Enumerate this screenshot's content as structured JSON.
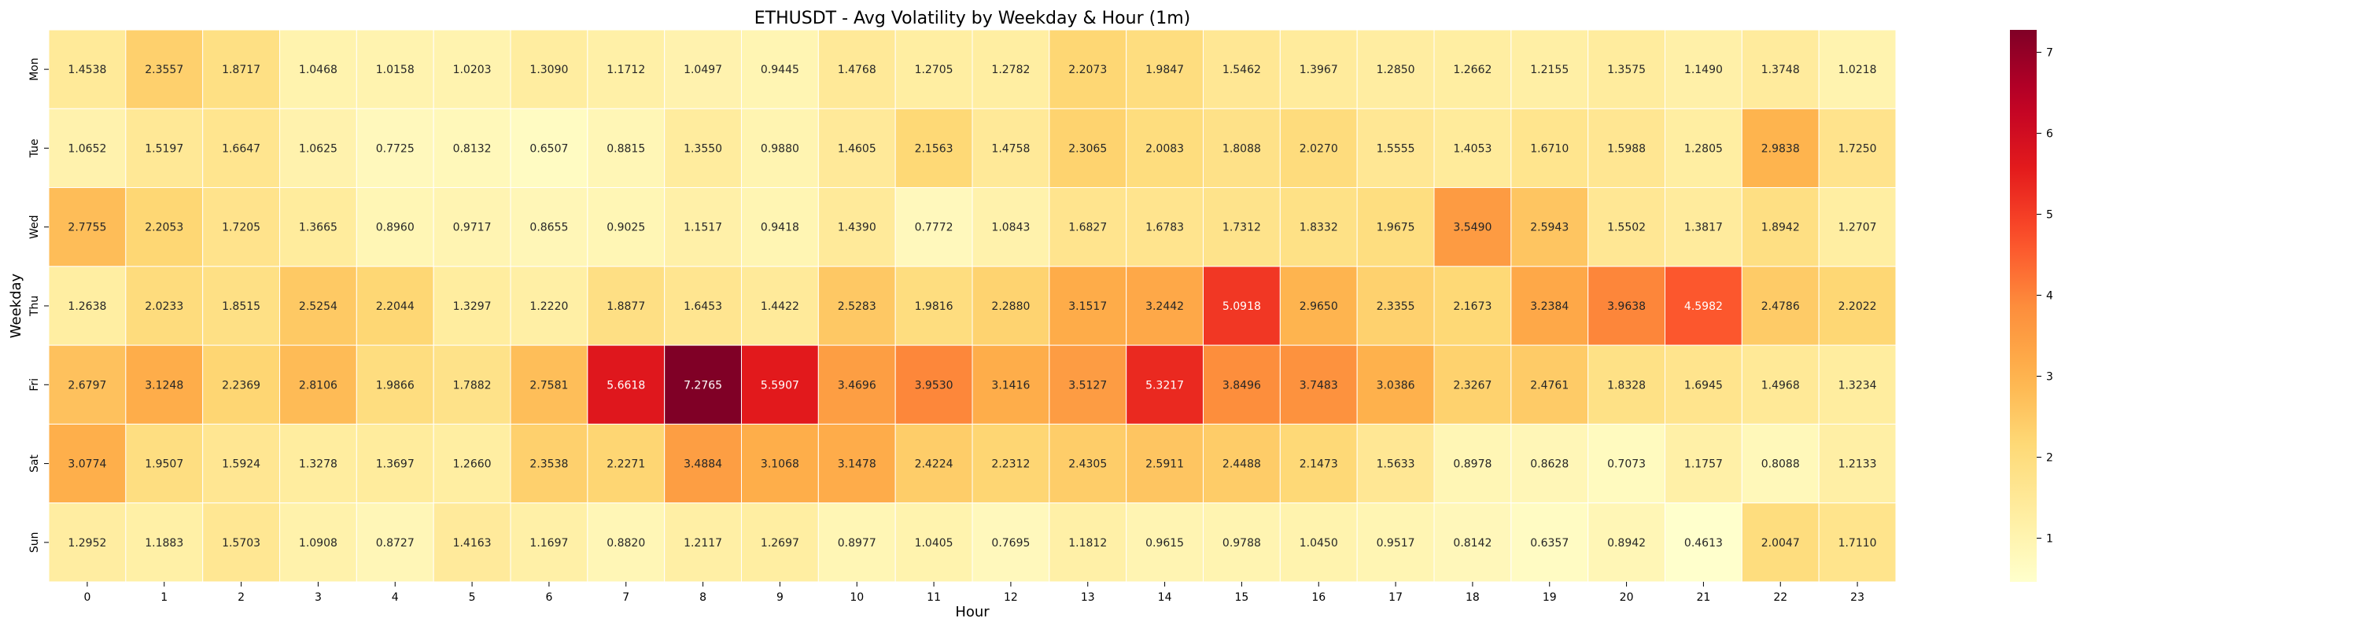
{
  "chart_data": {
    "type": "heatmap",
    "title": "ETHUSDT - Avg Volatility by Weekday & Hour (1m)",
    "xlabel": "Hour",
    "ylabel": "Weekday",
    "x_categories": [
      "0",
      "1",
      "2",
      "3",
      "4",
      "5",
      "6",
      "7",
      "8",
      "9",
      "10",
      "11",
      "12",
      "13",
      "14",
      "15",
      "16",
      "17",
      "18",
      "19",
      "20",
      "21",
      "22",
      "23"
    ],
    "y_categories": [
      "Mon",
      "Tue",
      "Wed",
      "Thu",
      "Fri",
      "Sat",
      "Sun"
    ],
    "values": [
      [
        1.4538,
        2.3557,
        1.8717,
        1.0468,
        1.0158,
        1.0203,
        1.309,
        1.1712,
        1.0497,
        0.9445,
        1.4768,
        1.2705,
        1.2782,
        2.2073,
        1.9847,
        1.5462,
        1.3967,
        1.285,
        1.2662,
        1.2155,
        1.3575,
        1.149,
        1.3748,
        1.0218
      ],
      [
        1.0652,
        1.5197,
        1.6647,
        1.0625,
        0.7725,
        0.8132,
        0.6507,
        0.8815,
        1.355,
        0.988,
        1.4605,
        2.1563,
        1.4758,
        2.3065,
        2.0083,
        1.8088,
        2.027,
        1.5555,
        1.4053,
        1.671,
        1.5988,
        1.2805,
        2.9838,
        1.725
      ],
      [
        2.7755,
        2.2053,
        1.7205,
        1.3665,
        0.896,
        0.9717,
        0.8655,
        0.9025,
        1.1517,
        0.9418,
        1.439,
        0.7772,
        1.0843,
        1.6827,
        1.6783,
        1.7312,
        1.8332,
        1.9675,
        3.549,
        2.5943,
        1.5502,
        1.3817,
        1.8942,
        1.2707
      ],
      [
        1.2638,
        2.0233,
        1.8515,
        2.5254,
        2.2044,
        1.3297,
        1.222,
        1.8877,
        1.6453,
        1.4422,
        2.5283,
        1.9816,
        2.288,
        3.1517,
        3.2442,
        5.0918,
        2.965,
        2.3355,
        2.1673,
        3.2384,
        3.9638,
        4.5982,
        2.4786,
        2.2022
      ],
      [
        2.6797,
        3.1248,
        2.2369,
        2.8106,
        1.9866,
        1.7882,
        2.7581,
        5.6618,
        7.2765,
        5.5907,
        3.4696,
        3.953,
        3.1416,
        3.5127,
        5.3217,
        3.8496,
        3.7483,
        3.0386,
        2.3267,
        2.4761,
        1.8328,
        1.6945,
        1.4968,
        1.3234
      ],
      [
        3.0774,
        1.9507,
        1.5924,
        1.3278,
        1.3697,
        1.266,
        2.3538,
        2.2271,
        3.4884,
        3.1068,
        3.1478,
        2.4224,
        2.2312,
        2.4305,
        2.5911,
        2.4488,
        2.1473,
        1.5633,
        0.8978,
        0.8628,
        0.7073,
        1.1757,
        0.8088,
        1.2133
      ],
      [
        1.2952,
        1.1883,
        1.5703,
        1.0908,
        0.8727,
        1.4163,
        1.1697,
        0.882,
        1.2117,
        1.2697,
        0.8977,
        1.0405,
        0.7695,
        1.1812,
        0.9615,
        0.9788,
        1.045,
        0.9517,
        0.8142,
        0.6357,
        0.8942,
        0.4613,
        2.0047,
        1.711
      ]
    ],
    "colorbar": {
      "colormap": "YlOrRd",
      "range": [
        0.4613,
        7.2765
      ],
      "ticks": [
        1,
        2,
        3,
        4,
        5,
        6,
        7
      ]
    },
    "value_format_decimals": 4,
    "grid": false
  }
}
